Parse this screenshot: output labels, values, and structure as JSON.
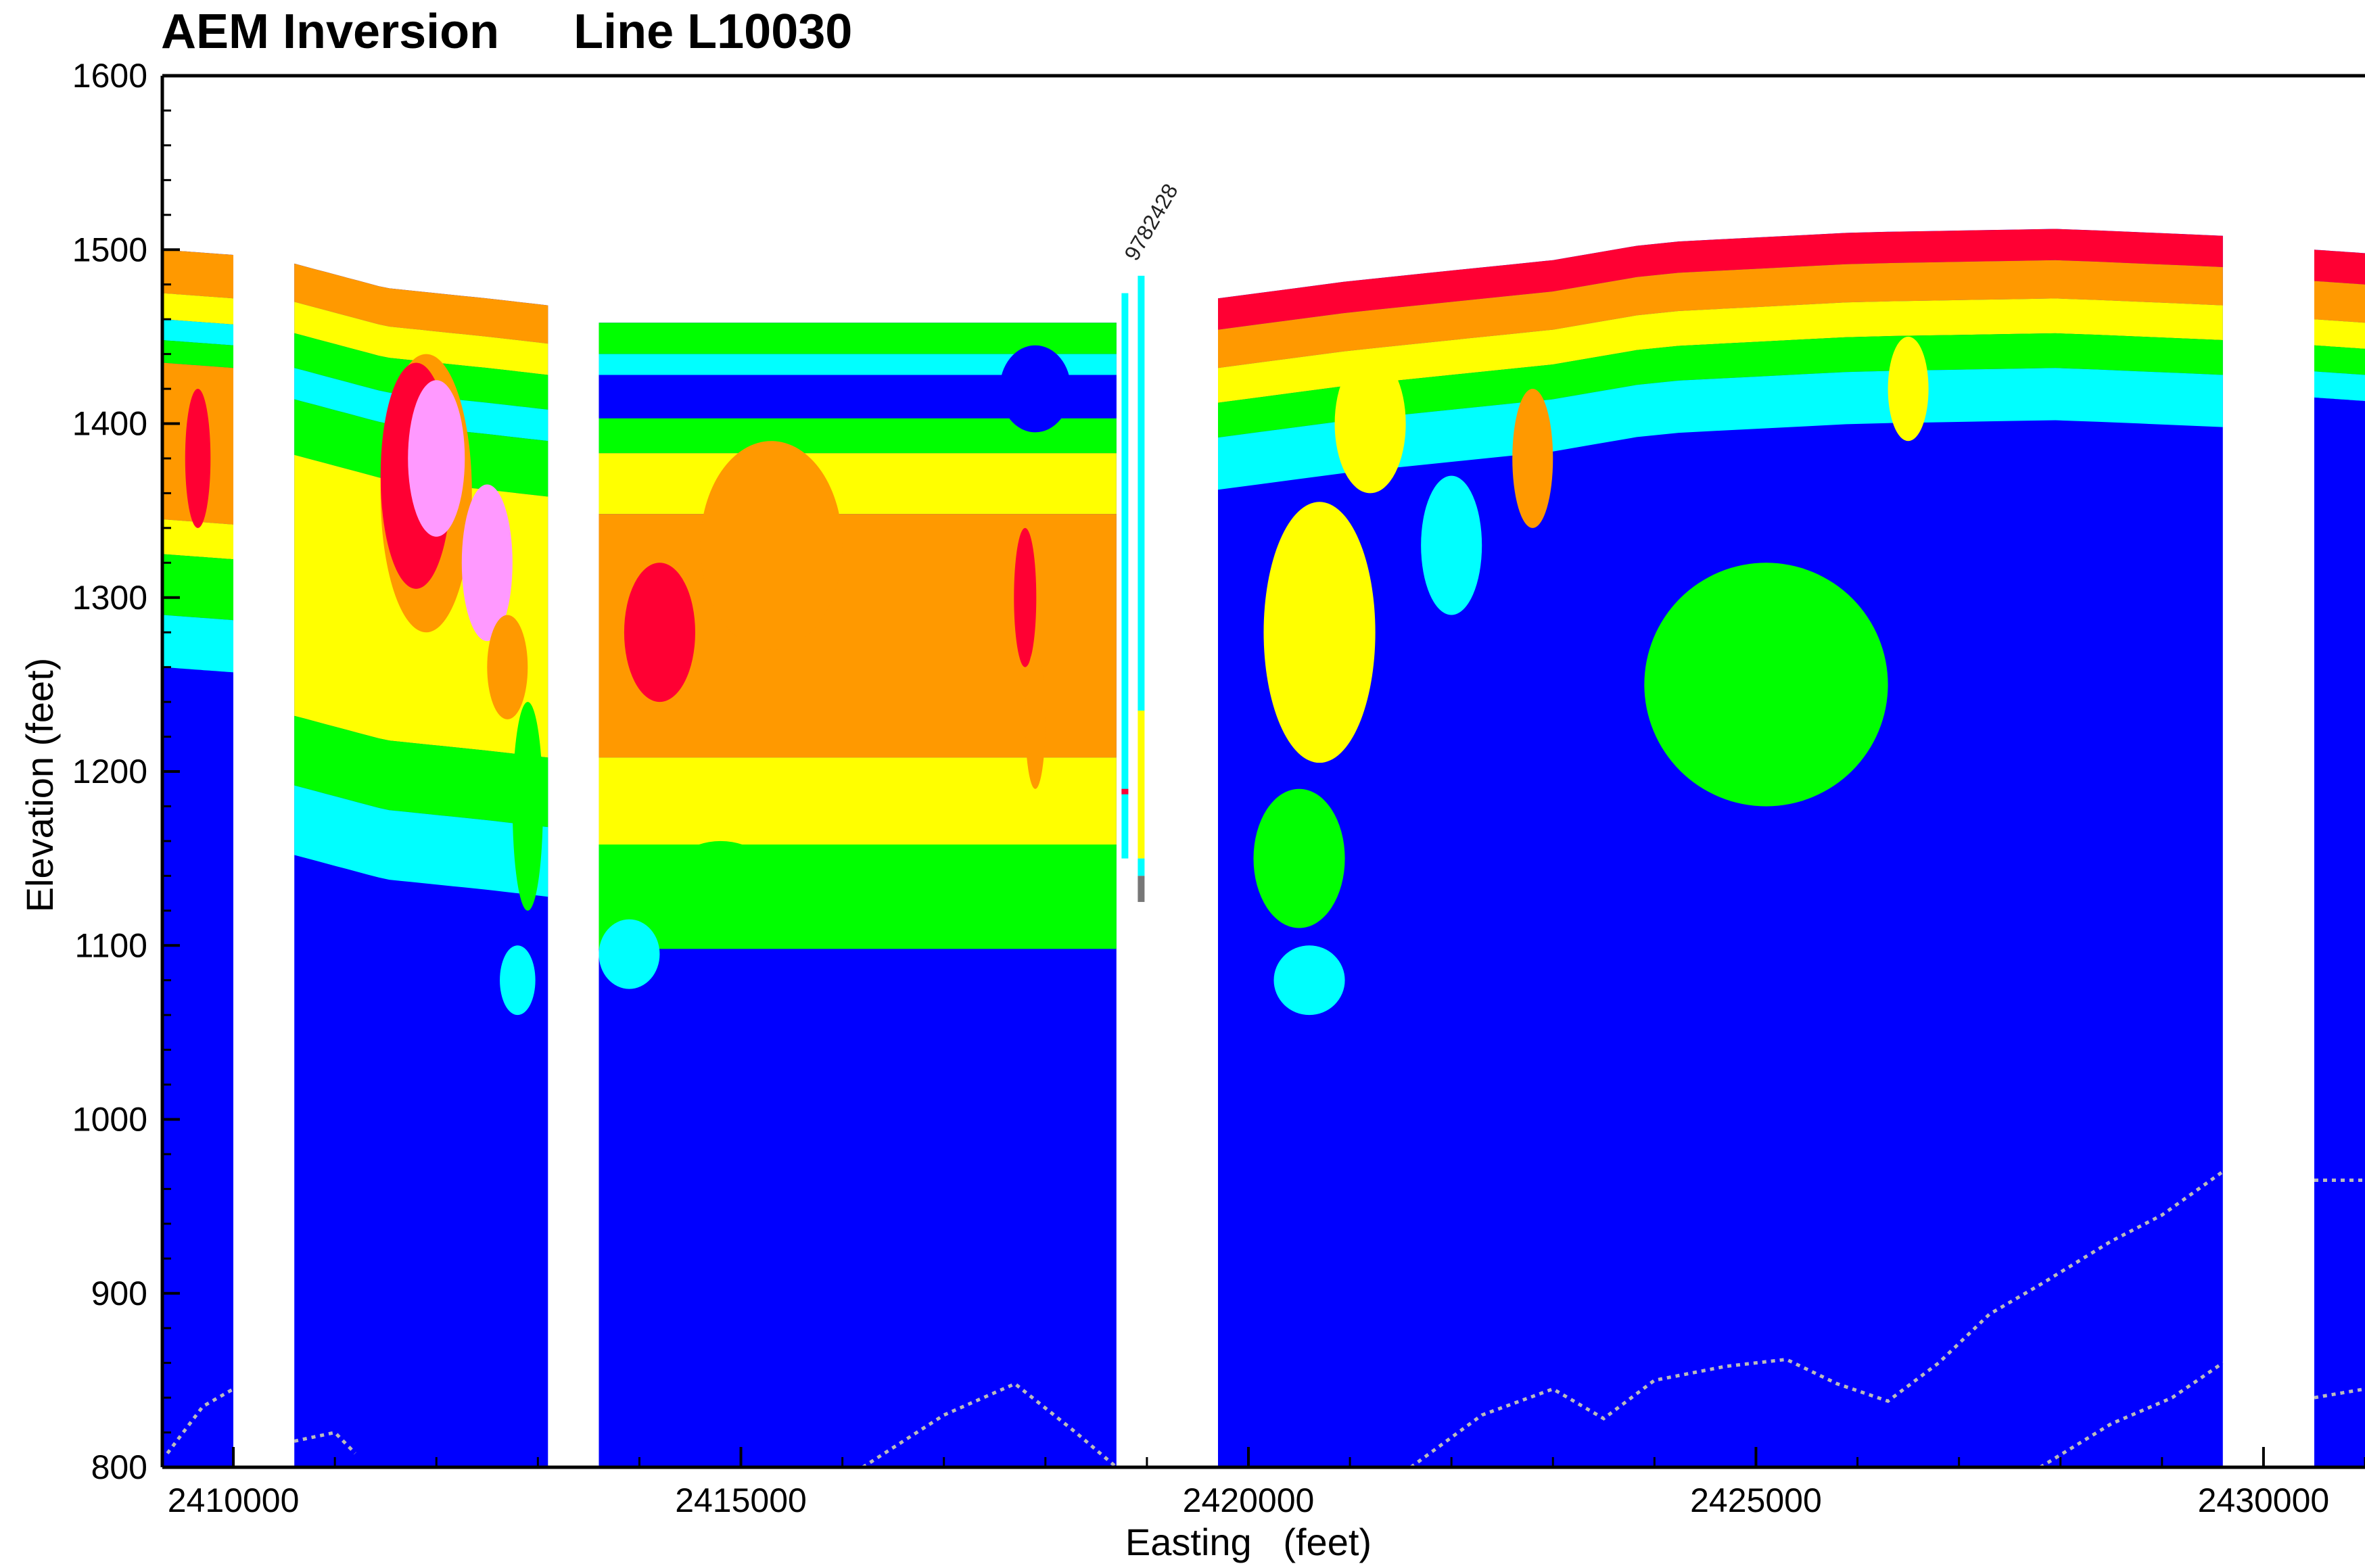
{
  "chart_data": {
    "type": "heatmap",
    "title": "AEM Inversion",
    "subtitle": "Line L10030",
    "xlabel": "Easting   (feet)",
    "ylabel": "Elevation (feet)",
    "xlim": [
      2409300,
      2431000
    ],
    "ylim": [
      800,
      1600
    ],
    "x_ticks": [
      2410000,
      2415000,
      2420000,
      2425000,
      2430000
    ],
    "y_ticks": [
      800,
      900,
      1000,
      1100,
      1200,
      1300,
      1400,
      1500,
      1600
    ],
    "grid": false,
    "colors": {
      "background": "#0000ff",
      "cyan": "#00ffff",
      "green": "#00ff00",
      "yellow": "#ffff00",
      "orange": "#ff9900",
      "red": "#ff0033",
      "pink": "#ff99ff",
      "contour": "#bbbbbb"
    },
    "well_label": "9782428",
    "segments": [
      {
        "x0": 2409300,
        "x1": 2410000,
        "top": [
          [
            2409300,
            1500
          ],
          [
            2410000,
            1497
          ]
        ],
        "bands": [
          [
            0,
            25,
            "orange"
          ],
          [
            25,
            40,
            "yellow"
          ],
          [
            40,
            52,
            "cyan"
          ],
          [
            52,
            65,
            "green"
          ],
          [
            65,
            155,
            "orange"
          ],
          [
            155,
            175,
            "yellow"
          ],
          [
            175,
            210,
            "green"
          ],
          [
            210,
            240,
            "cyan"
          ]
        ],
        "blobs": [
          [
            2409650,
            1380,
            12,
            "red",
            250,
            80
          ]
        ]
      },
      {
        "x0": 2410600,
        "x1": 2413100,
        "top": [
          [
            2410600,
            1492
          ],
          [
            2411500,
            1478
          ],
          [
            2412500,
            1472
          ],
          [
            2413100,
            1468
          ]
        ],
        "bands": [
          [
            0,
            22,
            "orange"
          ],
          [
            22,
            40,
            "yellow"
          ],
          [
            40,
            60,
            "green"
          ],
          [
            60,
            78,
            "cyan"
          ],
          [
            78,
            110,
            "green"
          ],
          [
            110,
            260,
            "yellow"
          ],
          [
            260,
            300,
            "green"
          ],
          [
            300,
            340,
            "cyan"
          ]
        ],
        "blobs": [
          [
            2411900,
            1360,
            95,
            "orange",
            900,
            160
          ],
          [
            2411800,
            1370,
            75,
            "red",
            700,
            130
          ],
          [
            2412000,
            1380,
            55,
            "pink",
            560,
            90
          ],
          [
            2412500,
            1320,
            60,
            "pink",
            500,
            90
          ],
          [
            2412700,
            1260,
            30,
            "orange",
            400,
            60
          ],
          [
            2412900,
            1180,
            80,
            "green",
            300,
            120
          ],
          [
            2412800,
            1080,
            30,
            "cyan",
            350,
            40
          ]
        ]
      },
      {
        "x0": 2413600,
        "x1": 2418700,
        "top": [
          [
            2413600,
            1458
          ],
          [
            2418700,
            1458
          ]
        ],
        "bands": [
          [
            0,
            18,
            "green"
          ],
          [
            18,
            30,
            "cyan"
          ],
          [
            30,
            55,
            "blue"
          ],
          [
            55,
            75,
            "green"
          ],
          [
            75,
            110,
            "yellow"
          ],
          [
            110,
            250,
            "orange"
          ],
          [
            250,
            300,
            "yellow"
          ],
          [
            300,
            360,
            "green"
          ]
        ],
        "blobs": [
          [
            2414200,
            1280,
            90,
            "red",
            700,
            80
          ],
          [
            2415300,
            1330,
            60,
            "orange",
            1400,
            120
          ],
          [
            2417900,
            1420,
            40,
            "blue",
            700,
            50
          ],
          [
            2417800,
            1300,
            110,
            "red",
            220,
            80
          ],
          [
            2417900,
            1230,
            120,
            "orange",
            200,
            80
          ],
          [
            2414800,
            1130,
            40,
            "green",
            1200,
            60
          ],
          [
            2413900,
            1095,
            25,
            "cyan",
            600,
            40
          ]
        ]
      },
      {
        "x0": 2419700,
        "x1": 2429600,
        "top": [
          [
            2419700,
            1472
          ],
          [
            2421000,
            1482
          ],
          [
            2423000,
            1494
          ],
          [
            2424000,
            1504
          ],
          [
            2426000,
            1510
          ],
          [
            2428000,
            1512
          ],
          [
            2429600,
            1508
          ]
        ],
        "bands": [
          [
            0,
            18,
            "red"
          ],
          [
            18,
            40,
            "orange"
          ],
          [
            40,
            60,
            "yellow"
          ],
          [
            60,
            80,
            "green"
          ],
          [
            80,
            110,
            "cyan"
          ]
        ],
        "blobs": [
          [
            2420700,
            1280,
            120,
            "yellow",
            1100,
            150
          ],
          [
            2421200,
            1400,
            40,
            "yellow",
            700,
            80
          ],
          [
            2422800,
            1380,
            40,
            "orange",
            400,
            80
          ],
          [
            2425100,
            1250,
            70,
            "green",
            2400,
            140
          ],
          [
            2425100,
            1250,
            60,
            "green",
            1900,
            100
          ],
          [
            2420500,
            1150,
            60,
            "green",
            900,
            80
          ],
          [
            2422000,
            1330,
            30,
            "cyan",
            600,
            80
          ],
          [
            2426500,
            1420,
            30,
            "yellow",
            400,
            60
          ],
          [
            2420600,
            1080,
            40,
            "cyan",
            700,
            40
          ]
        ]
      },
      {
        "x0": 2430500,
        "x1": 2431000,
        "top": [
          [
            2430500,
            1500
          ],
          [
            2431000,
            1498
          ]
        ],
        "bands": [
          [
            0,
            18,
            "red"
          ],
          [
            18,
            40,
            "orange"
          ],
          [
            40,
            55,
            "yellow"
          ],
          [
            55,
            70,
            "green"
          ],
          [
            70,
            85,
            "cyan"
          ]
        ],
        "blobs": []
      }
    ],
    "well_log": {
      "x": 2418950,
      "top": 1485,
      "bottom": 1125
    }
  }
}
